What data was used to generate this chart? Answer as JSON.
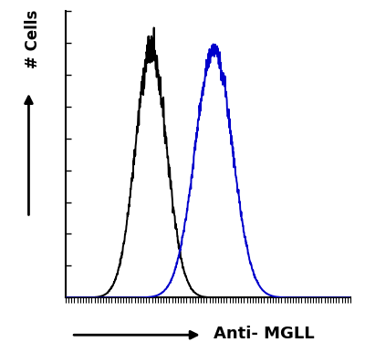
{
  "title": "",
  "xlabel": "Anti- MGLL",
  "ylabel": "# Cells",
  "background_color": "#ffffff",
  "plot_bg_color": "#ffffff",
  "black_peak": 0.3,
  "black_std": 0.055,
  "blue_peak": 0.52,
  "blue_std": 0.065,
  "black_color": "#000000",
  "blue_color": "#0000cc",
  "x_min": 0,
  "x_max": 1.0,
  "y_min": 0,
  "y_max": 1.15,
  "line_width": 1.4,
  "xlabel_fontsize": 13,
  "ylabel_fontsize": 12,
  "xlabel_fontweight": "bold",
  "ylabel_fontweight": "bold",
  "n_xticks": 100,
  "n_yticks": 10,
  "noise_factor_black": 0.035,
  "noise_factor_blue": 0.025
}
